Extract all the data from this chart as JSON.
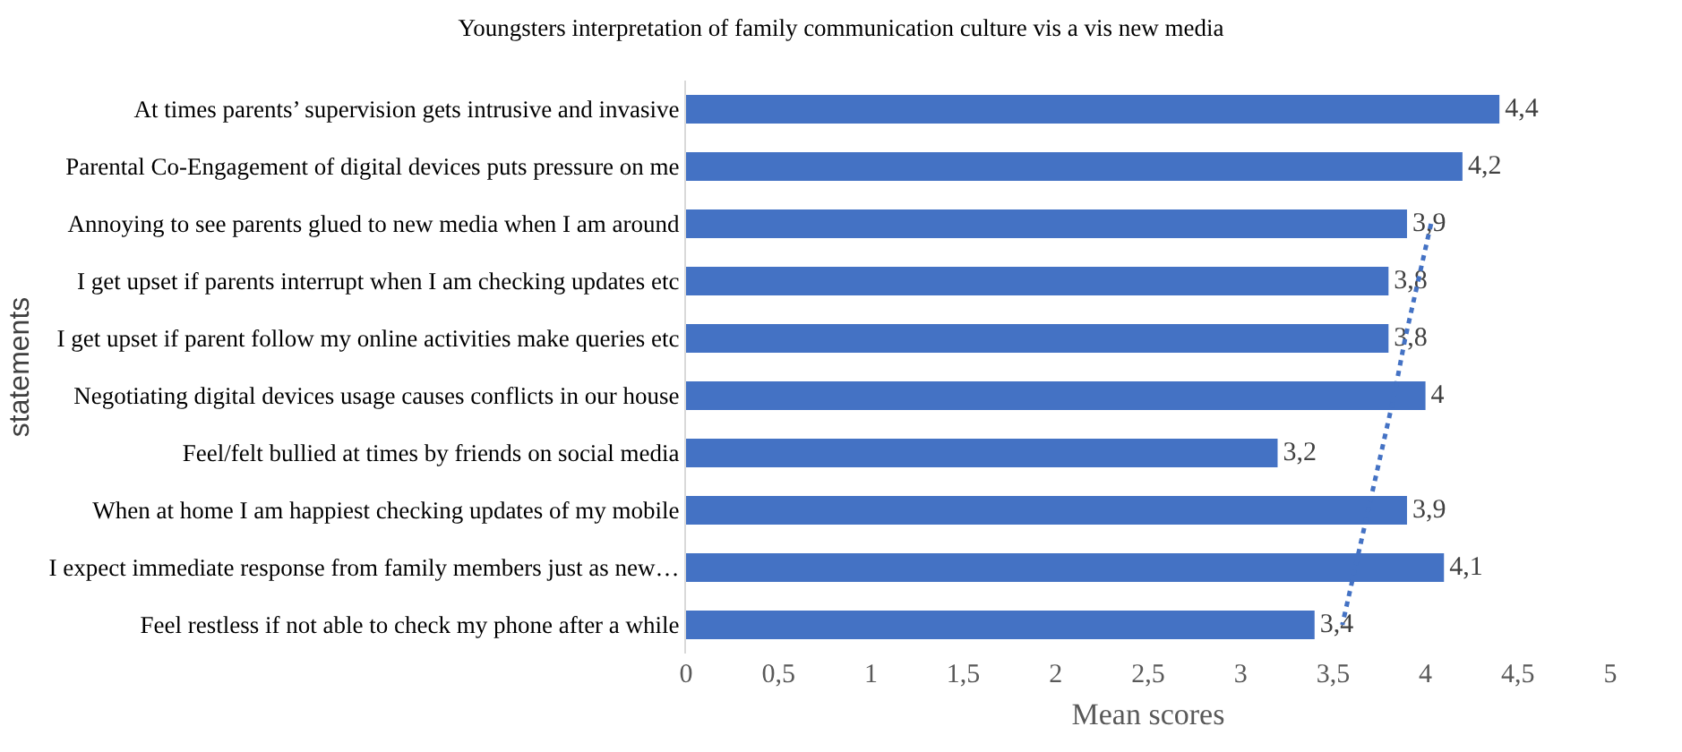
{
  "chart_data": {
    "type": "bar",
    "orientation": "horizontal",
    "title": "Youngsters interpretation of family communication culture vis a vis new media",
    "xlabel": "Mean scores",
    "ylabel": "statements",
    "categories": [
      "At times parents’ supervision gets intrusive and invasive",
      "Parental Co-Engagement of digital devices puts pressure on me",
      "Annoying to see parents glued to new media when I am around",
      "I get upset if parents interrupt when I am checking updates etc",
      "I get upset if parent follow my online activities make queries etc",
      "Negotiating digital devices usage causes conflicts in our house",
      "Feel/felt bullied at times by friends on social media",
      "When at home I am happiest checking updates of my mobile",
      "I expect immediate response from family members just as new…",
      "Feel restless if not able to check my phone after a while"
    ],
    "series": [
      {
        "color": "#4472c4",
        "values": [
          4.4,
          4.2,
          3.9,
          3.8,
          3.8,
          4,
          3.2,
          3.9,
          4.1,
          3.4
        ],
        "value_labels": [
          "4,4",
          "4,2",
          "3,9",
          "3,8",
          "3,8",
          "4",
          "3,2",
          "3,9",
          "4,1",
          "3,4"
        ]
      },
      {
        "type": "line",
        "color": "#4472c4",
        "line_style": "dotted",
        "values": [
          null,
          null,
          4.03,
          3.96,
          3.89,
          3.83,
          3.76,
          3.69,
          3.62,
          3.55
        ]
      }
    ],
    "xlim": [
      0,
      5
    ],
    "xticks": [
      0,
      {
        "value": 0.5,
        "label": "0,5"
      },
      1,
      {
        "value": 1.5,
        "label": "1,5"
      },
      2,
      {
        "value": 2.5,
        "label": "2,5"
      },
      3,
      {
        "value": 3.5,
        "label": "3,5"
      },
      4,
      {
        "value": 4.5,
        "label": "4,5"
      },
      5
    ]
  }
}
